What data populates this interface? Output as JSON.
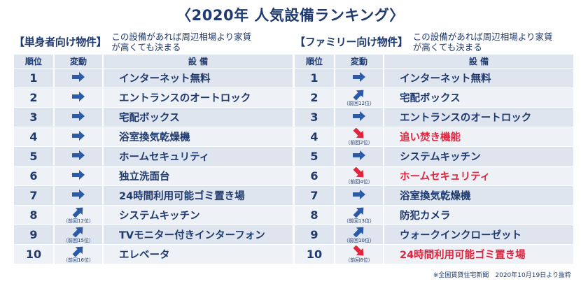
{
  "title": "〈2020年 人気設備ランキング〉",
  "colors": {
    "navy": "#1f3a6e",
    "up_arrow": "#2b5aa8",
    "down_arrow": "#e0253f",
    "row_a": "#dfe5ee",
    "row_b": "#eef1f6"
  },
  "headers": {
    "rank": "順位",
    "change": "変動",
    "item": "設 備"
  },
  "panels": [
    {
      "tag": "【単身者向け物件】",
      "desc": "この設備があれば周辺相場より家賃が高くても決まる",
      "rows": [
        {
          "rank": "1",
          "change": "same",
          "note": "",
          "item": "インターネット無料",
          "highlight": false
        },
        {
          "rank": "2",
          "change": "same",
          "note": "",
          "item": "エントランスのオートロック",
          "highlight": false
        },
        {
          "rank": "3",
          "change": "same",
          "note": "",
          "item": "宅配ボックス",
          "highlight": false
        },
        {
          "rank": "4",
          "change": "same",
          "note": "",
          "item": "浴室換気乾燥機",
          "highlight": false
        },
        {
          "rank": "5",
          "change": "same",
          "note": "",
          "item": "ホームセキュリティ",
          "highlight": false
        },
        {
          "rank": "6",
          "change": "same",
          "note": "",
          "item": "独立洗面台",
          "highlight": false
        },
        {
          "rank": "7",
          "change": "same",
          "note": "",
          "item": "24時間利用可能ゴミ置き場",
          "highlight": false
        },
        {
          "rank": "8",
          "change": "up",
          "note": "（前回12位）",
          "item": "システムキッチン",
          "highlight": false
        },
        {
          "rank": "9",
          "change": "up",
          "note": "（前回15位）",
          "item": "TVモニター付きインターフォン",
          "highlight": false
        },
        {
          "rank": "10",
          "change": "up",
          "note": "（前回16位）",
          "item": "エレベータ",
          "highlight": false
        }
      ]
    },
    {
      "tag": "【ファミリー向け物件】",
      "desc": "この設備があれば周辺相場より家賃が高くても決まる",
      "rows": [
        {
          "rank": "1",
          "change": "same",
          "note": "",
          "item": "インターネット無料",
          "highlight": false
        },
        {
          "rank": "2",
          "change": "up",
          "note": "（前回12位）",
          "item": "宅配ボックス",
          "highlight": false
        },
        {
          "rank": "3",
          "change": "same",
          "note": "",
          "item": "エントランスのオートロック",
          "highlight": false
        },
        {
          "rank": "4",
          "change": "down",
          "note": "（前回2位）",
          "item": "追い焚き機能",
          "highlight": true
        },
        {
          "rank": "5",
          "change": "same",
          "note": "",
          "item": "システムキッチン",
          "highlight": false
        },
        {
          "rank": "6",
          "change": "down",
          "note": "（前回4位）",
          "item": "ホームセキュリティ",
          "highlight": true
        },
        {
          "rank": "7",
          "change": "same",
          "note": "",
          "item": "浴室換気乾燥機",
          "highlight": false
        },
        {
          "rank": "8",
          "change": "up",
          "note": "（前回13位）",
          "item": "防犯カメラ",
          "highlight": false
        },
        {
          "rank": "9",
          "change": "up",
          "note": "（前回10位）",
          "item": "ウォークインクローゼット",
          "highlight": false
        },
        {
          "rank": "10",
          "change": "down",
          "note": "（前回8位）",
          "item": "24時間利用可能ゴミ置き場",
          "highlight": true
        }
      ]
    }
  ],
  "footnote": "※全国賃貸住宅新聞　2020年10月19日より抜粋"
}
